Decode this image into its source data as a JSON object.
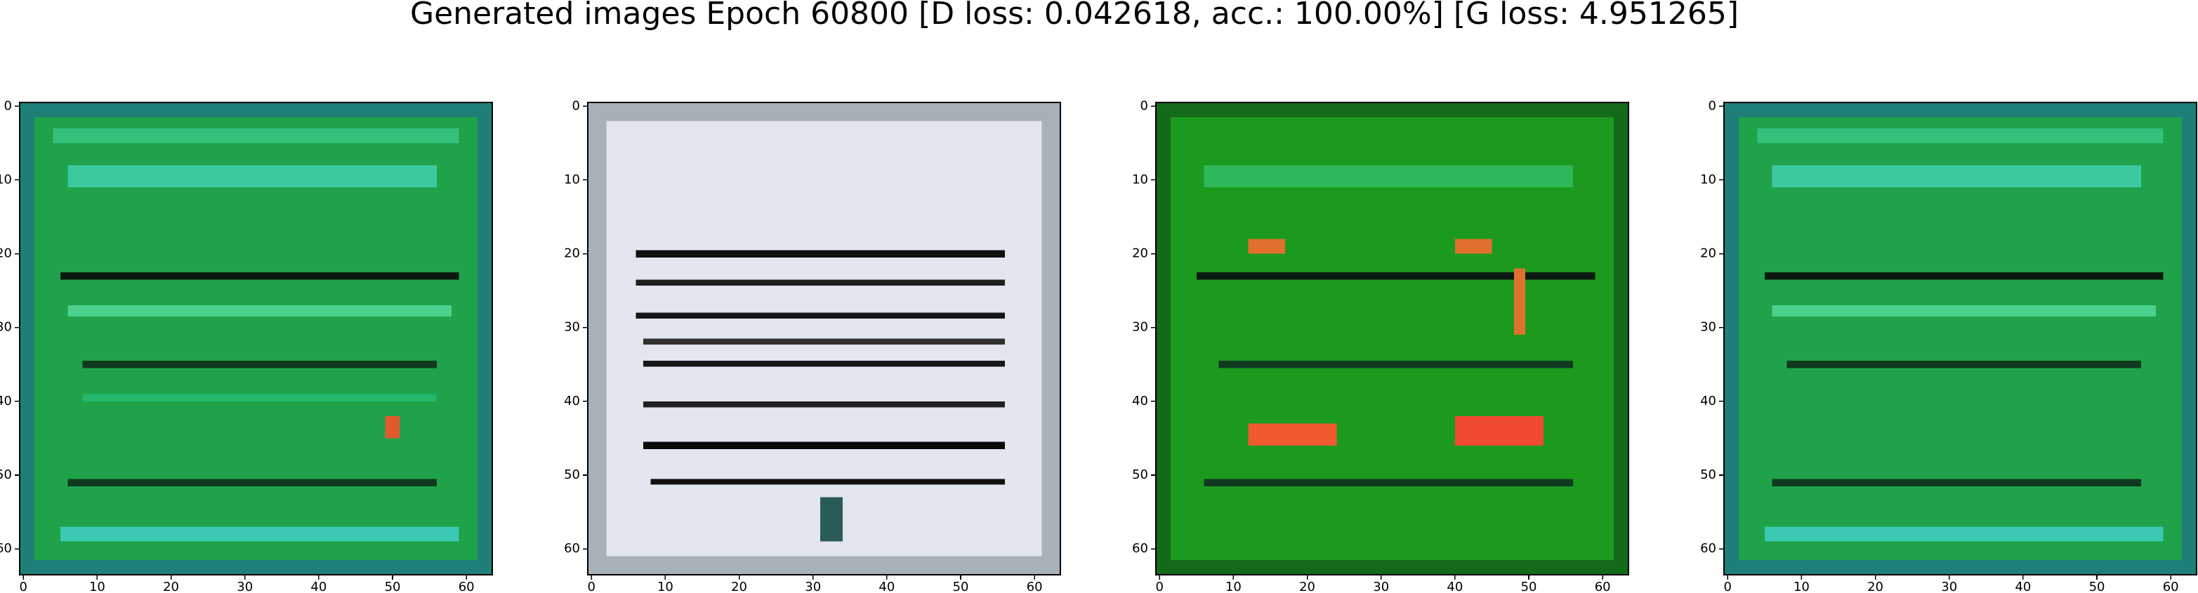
{
  "title": "Generated images Epoch 60800 [D loss: 0.042618, acc.: 100.00%] [G loss: 4.951265]",
  "chart_data": [
    {
      "type": "image",
      "xlim": [
        -0.5,
        63.5
      ],
      "ylim": [
        63.5,
        -0.5
      ],
      "xticks": [
        0,
        10,
        20,
        30,
        40,
        50,
        60
      ],
      "yticks": [
        0,
        10,
        20,
        30,
        40,
        50,
        60
      ]
    },
    {
      "type": "image",
      "xlim": [
        -0.5,
        63.5
      ],
      "ylim": [
        63.5,
        -0.5
      ],
      "xticks": [
        0,
        10,
        20,
        30,
        40,
        50,
        60
      ],
      "yticks": [
        0,
        10,
        20,
        30,
        40,
        50,
        60
      ]
    },
    {
      "type": "image",
      "xlim": [
        -0.5,
        63.5
      ],
      "ylim": [
        63.5,
        -0.5
      ],
      "xticks": [
        0,
        10,
        20,
        30,
        40,
        50,
        60
      ],
      "yticks": [
        0,
        10,
        20,
        30,
        40,
        50,
        60
      ]
    },
    {
      "type": "image",
      "xlim": [
        -0.5,
        63.5
      ],
      "ylim": [
        63.5,
        -0.5
      ],
      "xticks": [
        0,
        10,
        20,
        30,
        40,
        50,
        60
      ],
      "yticks": [
        0,
        10,
        20,
        30,
        40,
        50,
        60
      ]
    }
  ]
}
